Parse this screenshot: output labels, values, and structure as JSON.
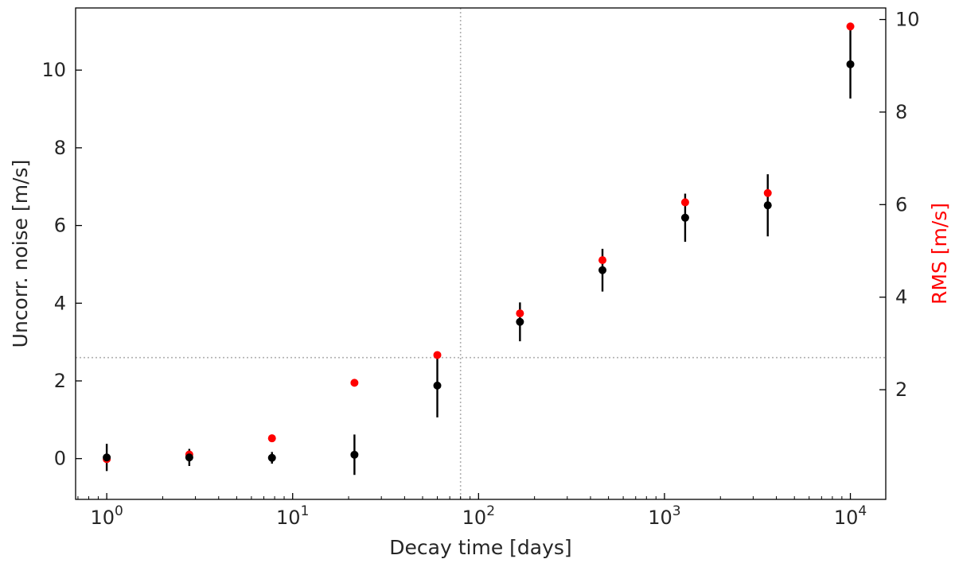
{
  "chart_data": {
    "type": "scatter",
    "xlabel": "Decay time [days]",
    "ylabel": "Uncorr. noise [m/s]",
    "y2label": "RMS [m/s]",
    "x_scale": "log",
    "xlim": [
      0.68,
      15500
    ],
    "ylim": [
      -1.05,
      11.6
    ],
    "y2lim": [
      -0.37,
      10.25
    ],
    "x_ticks": [
      {
        "value": 1,
        "base": "10",
        "exp": "0"
      },
      {
        "value": 10,
        "base": "10",
        "exp": "1"
      },
      {
        "value": 100,
        "base": "10",
        "exp": "2"
      },
      {
        "value": 1000,
        "base": "10",
        "exp": "3"
      },
      {
        "value": 10000,
        "base": "10",
        "exp": "4"
      }
    ],
    "y_ticks": [
      0,
      2,
      4,
      6,
      8,
      10
    ],
    "y_tick_labels": [
      "0",
      "2",
      "4",
      "6",
      "8",
      "10"
    ],
    "y2_ticks": [
      2,
      4,
      6,
      8,
      10
    ],
    "y2_tick_labels": [
      "2",
      "4",
      "6",
      "8",
      "10"
    ],
    "reference_lines": {
      "x": 80,
      "y": 2.6,
      "style": "dotted",
      "color": "#b0b0b0"
    },
    "grid": false,
    "series": [
      {
        "axis": "left",
        "color": "#000000",
        "points": [
          {
            "x": 1.0,
            "y": 0.03,
            "err": 0.35
          },
          {
            "x": 2.78,
            "y": 0.03,
            "err": 0.22
          },
          {
            "x": 7.74,
            "y": 0.02,
            "err": 0.15
          },
          {
            "x": 21.5,
            "y": 0.1,
            "err": 0.52
          },
          {
            "x": 60,
            "y": 1.88,
            "err": 0.82
          },
          {
            "x": 167,
            "y": 3.52,
            "err": 0.5
          },
          {
            "x": 464,
            "y": 4.85,
            "err": 0.55
          },
          {
            "x": 1292,
            "y": 6.2,
            "err": 0.62
          },
          {
            "x": 3594,
            "y": 6.52,
            "err": 0.8
          },
          {
            "x": 10000,
            "y": 10.15,
            "err": 0.88
          }
        ]
      },
      {
        "axis": "right",
        "color": "#ff0000",
        "points": [
          {
            "x": 1.0,
            "y": 0.5
          },
          {
            "x": 2.78,
            "y": 0.6
          },
          {
            "x": 7.74,
            "y": 0.95
          },
          {
            "x": 21.5,
            "y": 2.15
          },
          {
            "x": 60,
            "y": 2.75
          },
          {
            "x": 167,
            "y": 3.65
          },
          {
            "x": 464,
            "y": 4.8
          },
          {
            "x": 1292,
            "y": 6.05
          },
          {
            "x": 3594,
            "y": 6.25
          },
          {
            "x": 10000,
            "y": 9.85
          }
        ]
      }
    ]
  }
}
